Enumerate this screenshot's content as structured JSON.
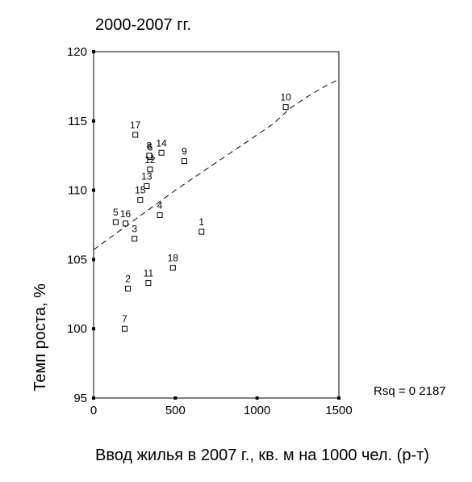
{
  "chart_data": {
    "type": "scatter",
    "title": "2000-2007 гг.",
    "xlabel": "Ввод жилья в 2007 г., кв. м на 1000 чел. (р-т)",
    "ylabel": "Темп роста, %",
    "xlim": [
      0,
      1500
    ],
    "ylim": [
      95,
      120
    ],
    "x_ticks": [
      0,
      500,
      1000,
      1500
    ],
    "y_ticks": [
      95,
      100,
      105,
      110,
      115,
      120
    ],
    "grid": false,
    "rsq_label": "Rsq = 0 2187",
    "points": [
      {
        "label": "1",
        "x": 660,
        "y": 107.0
      },
      {
        "label": "2",
        "x": 210,
        "y": 102.9
      },
      {
        "label": "3",
        "x": 250,
        "y": 106.5
      },
      {
        "label": "4",
        "x": 405,
        "y": 108.2
      },
      {
        "label": "5",
        "x": 135,
        "y": 107.7
      },
      {
        "label": "6",
        "x": 345,
        "y": 112.4
      },
      {
        "label": "7",
        "x": 190,
        "y": 100.0
      },
      {
        "label": "8",
        "x": 340,
        "y": 112.5
      },
      {
        "label": "9",
        "x": 555,
        "y": 112.1
      },
      {
        "label": "10",
        "x": 1175,
        "y": 116.0
      },
      {
        "label": "11",
        "x": 335,
        "y": 103.3
      },
      {
        "label": "12",
        "x": 345,
        "y": 111.5
      },
      {
        "label": "13",
        "x": 325,
        "y": 110.3
      },
      {
        "label": "14",
        "x": 415,
        "y": 112.7
      },
      {
        "label": "15",
        "x": 285,
        "y": 109.3
      },
      {
        "label": "16",
        "x": 195,
        "y": 107.6
      },
      {
        "label": "17",
        "x": 255,
        "y": 114.0
      },
      {
        "label": "18",
        "x": 485,
        "y": 104.4
      }
    ],
    "fit_line": [
      {
        "x": 0,
        "y": 105.7
      },
      {
        "x": 500,
        "y": 110.0
      },
      {
        "x": 1000,
        "y": 114.0
      },
      {
        "x": 1100,
        "y": 114.8
      },
      {
        "x": 1200,
        "y": 115.9
      },
      {
        "x": 1300,
        "y": 116.7
      },
      {
        "x": 1400,
        "y": 117.4
      },
      {
        "x": 1500,
        "y": 118.0
      }
    ]
  }
}
